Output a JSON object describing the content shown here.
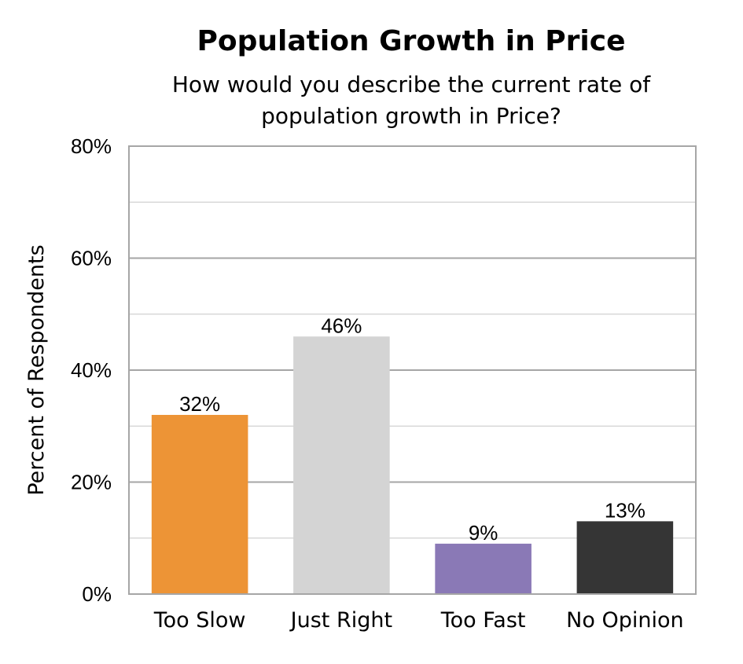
{
  "chart_data": {
    "type": "bar",
    "title": "Population Growth in Price",
    "subtitle_lines": [
      "How would you describe the current rate of",
      "population growth in Price?"
    ],
    "xlabel": "",
    "ylabel": "Percent of Respondents",
    "categories": [
      "Too Slow",
      "Just Right",
      "Too Fast",
      "No Opinion"
    ],
    "values": [
      32,
      46,
      9,
      13
    ],
    "value_labels": [
      "32%",
      "46%",
      "9%",
      "13%"
    ],
    "colors": [
      "#ED9436",
      "#D4D4D4",
      "#8A79B6",
      "#353535"
    ],
    "ylim": [
      0,
      80
    ],
    "yticks": [
      0,
      20,
      40,
      60,
      80
    ],
    "ytick_labels": [
      "0%",
      "20%",
      "40%",
      "60%",
      "80%"
    ],
    "grid": true,
    "legend": "none"
  }
}
